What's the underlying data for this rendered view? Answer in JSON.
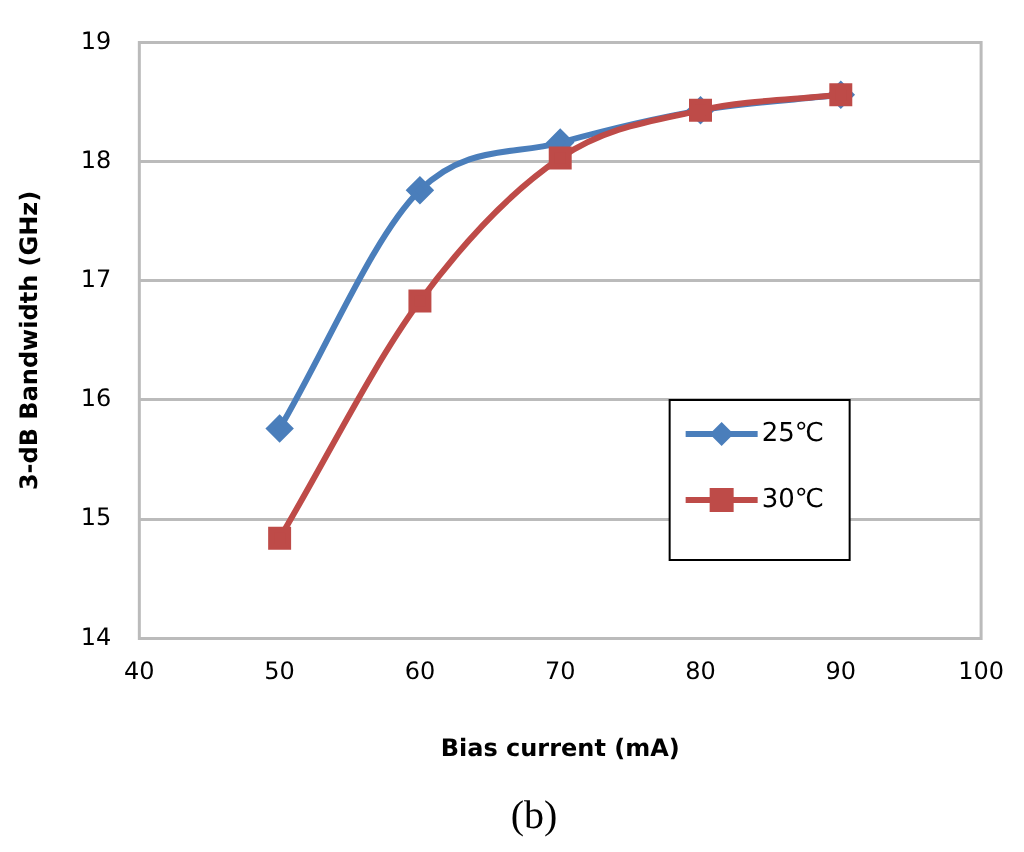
{
  "chart_data": {
    "type": "line",
    "xlabel": "Bias current (mA)",
    "ylabel": "3-dB Bandwidth (GHz)",
    "annotations": [
      "(b)"
    ],
    "x": [
      50,
      60,
      70,
      80,
      90
    ],
    "series": [
      {
        "name": "25℃",
        "color": "#4a7ebb",
        "marker": "diamond",
        "values": [
          15.76,
          17.76,
          18.16,
          18.43,
          18.56
        ]
      },
      {
        "name": "30℃",
        "color": "#be4b48",
        "marker": "square",
        "values": [
          14.84,
          16.83,
          18.03,
          18.43,
          18.56
        ]
      }
    ],
    "xlim": [
      40,
      100
    ],
    "xticks": [
      40,
      50,
      60,
      70,
      80,
      90,
      100
    ],
    "ylim": [
      14,
      19
    ],
    "yticks": [
      14,
      15,
      16,
      17,
      18,
      19
    ],
    "grid": "y",
    "legend": "right"
  }
}
